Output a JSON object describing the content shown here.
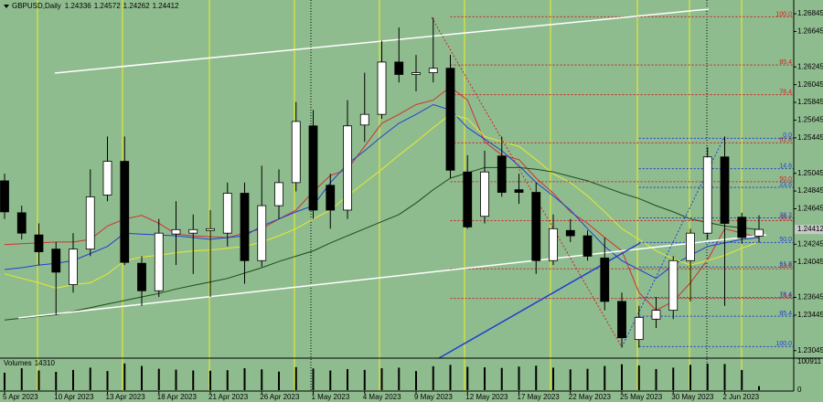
{
  "chart_data": {
    "type": "candlestick",
    "title": "GBPUSD,Daily",
    "categories": [
      "5 Apr 2023",
      null,
      null,
      "10 Apr 2023",
      null,
      null,
      "13 Apr 2023",
      null,
      null,
      "18 Apr 2023",
      null,
      null,
      "21 Apr 2023",
      null,
      null,
      "26 Apr 2023",
      null,
      null,
      "1 May 2023",
      null,
      null,
      "4 May 2023",
      null,
      null,
      "9 May 2023",
      null,
      null,
      "12 May 2023",
      null,
      null,
      "17 May 2023",
      null,
      null,
      "22 May 2023",
      null,
      null,
      "25 May 2023",
      null,
      null,
      "30 May 2023",
      null,
      null,
      "2 Jun 2023",
      null,
      null
    ],
    "candles": {
      "open": [
        1.2496,
        1.246,
        1.2435,
        1.2419,
        1.2379,
        1.2419,
        1.248,
        1.2518,
        1.2403,
        1.2372,
        1.2436,
        1.2437,
        1.244,
        1.2437,
        1.2482,
        1.2406,
        1.2468,
        1.2494,
        1.2558,
        1.2491,
        1.2463,
        1.2559,
        1.2571,
        1.263,
        1.2616,
        1.2618,
        1.2623,
        1.2506,
        1.2456,
        1.2524,
        1.2486,
        1.2483,
        1.2406,
        1.244,
        1.2434,
        1.2409,
        1.236,
        1.2317,
        1.234,
        1.235,
        1.2406,
        1.2437,
        1.2523,
        1.2455,
        1.24336
      ],
      "high": [
        1.2504,
        1.2468,
        1.2448,
        1.2427,
        1.2437,
        1.2509,
        1.2546,
        1.2546,
        1.2411,
        1.2453,
        1.2473,
        1.2458,
        1.2463,
        1.2494,
        1.2494,
        1.2513,
        1.2509,
        1.2585,
        1.2576,
        1.2504,
        1.2587,
        1.2618,
        1.2654,
        1.2669,
        1.2638,
        1.268,
        1.2638,
        1.2525,
        1.253,
        1.2546,
        1.2504,
        1.2494,
        1.2458,
        1.2453,
        1.244,
        1.2432,
        1.237,
        1.2355,
        1.2365,
        1.2411,
        1.2442,
        1.2534,
        1.2546,
        1.246,
        1.24572
      ],
      "low": [
        1.2453,
        1.243,
        1.2401,
        1.2345,
        1.237,
        1.2411,
        1.2473,
        1.2401,
        1.2355,
        1.2365,
        1.2401,
        1.2391,
        1.2365,
        1.2422,
        1.238,
        1.2399,
        1.2453,
        1.2484,
        1.2453,
        1.2442,
        1.2453,
        1.254,
        1.2566,
        1.2607,
        1.2597,
        1.2607,
        1.2499,
        1.2442,
        1.2448,
        1.2478,
        1.247,
        1.2391,
        1.2401,
        1.2427,
        1.2406,
        1.235,
        1.2308,
        1.2308,
        1.233,
        1.234,
        1.236,
        1.243,
        1.2355,
        1.2425,
        1.24262
      ],
      "close": [
        1.2461,
        1.2437,
        1.2416,
        1.2393,
        1.2419,
        1.2478,
        1.2518,
        1.2404,
        1.2372,
        1.2437,
        1.2441,
        1.2441,
        1.2442,
        1.2482,
        1.2406,
        1.2468,
        1.2494,
        1.2563,
        1.2463,
        1.2463,
        1.2558,
        1.2571,
        1.263,
        1.2616,
        1.2618,
        1.2623,
        1.2508,
        1.2444,
        1.2506,
        1.2483,
        1.2483,
        1.2406,
        1.2442,
        1.2434,
        1.2411,
        1.236,
        1.2319,
        1.2342,
        1.235,
        1.2406,
        1.2437,
        1.2523,
        1.2448,
        1.2432,
        1.24412
      ]
    },
    "bull_color": "#ffffff",
    "bear_color": "#000000",
    "overlays": [
      {
        "color": "#d03030",
        "values": [
          1.2424,
          1.2425,
          1.2426,
          1.2427,
          1.2427,
          1.243,
          1.2445,
          1.2453,
          1.2457,
          1.2448,
          1.2436,
          1.2434,
          1.2433,
          1.2432,
          1.2437,
          1.2442,
          1.2453,
          1.2463,
          1.2484,
          1.2502,
          1.2509,
          1.2535,
          1.2561,
          1.2571,
          1.2582,
          1.2587,
          1.2602,
          1.2587,
          1.254,
          1.2525,
          1.252,
          1.2499,
          1.2482,
          1.2461,
          1.2448,
          1.2432,
          1.2417,
          1.237,
          1.235,
          1.236,
          1.2381,
          1.2407,
          1.2442,
          1.2437,
          1.2432
        ]
      },
      {
        "color": "#2040d0",
        "values": [
          1.2396,
          1.2398,
          1.2401,
          1.2403,
          1.2406,
          1.2414,
          1.2422,
          1.2437,
          1.2436,
          1.2435,
          1.2434,
          1.2432,
          1.243,
          1.2432,
          1.2434,
          1.2445,
          1.2453,
          1.2461,
          1.2468,
          1.2494,
          1.2515,
          1.253,
          1.2546,
          1.2561,
          1.2571,
          1.2582,
          1.2576,
          1.2556,
          1.2543,
          1.253,
          1.2513,
          1.2494,
          1.2479,
          1.2463,
          1.2442,
          1.2422,
          1.2406,
          1.2396,
          1.2386,
          1.2401,
          1.2412,
          1.2422,
          1.2426,
          1.243,
          1.2432
        ]
      },
      {
        "color": "#e8e830",
        "values": [
          1.2391,
          1.2386,
          1.2381,
          1.2375,
          1.2379,
          1.2381,
          1.2391,
          1.2406,
          1.241,
          1.2412,
          1.2415,
          1.2417,
          1.2418,
          1.242,
          1.2422,
          1.2427,
          1.2434,
          1.2442,
          1.2453,
          1.2463,
          1.2479,
          1.2494,
          1.2509,
          1.2525,
          1.254,
          1.2556,
          1.2571,
          1.2566,
          1.2546,
          1.254,
          1.2535,
          1.252,
          1.2504,
          1.2494,
          1.2479,
          1.2461,
          1.2442,
          1.243,
          1.2417,
          1.2408,
          1.2401,
          1.2406,
          1.2412,
          1.242,
          1.2427
        ]
      },
      {
        "color": "#1e4a1e",
        "values": [
          1.2339,
          1.2341,
          1.2343,
          1.2345,
          1.2349,
          1.2353,
          1.2357,
          1.2361,
          1.2365,
          1.2369,
          1.2374,
          1.2378,
          1.2382,
          1.2386,
          1.2392,
          1.2398,
          1.2405,
          1.2411,
          1.2417,
          1.2426,
          1.2434,
          1.2442,
          1.245,
          1.2458,
          1.2471,
          1.2486,
          1.2499,
          1.2505,
          1.2511,
          1.2511,
          1.2511,
          1.2509,
          1.2506,
          1.2501,
          1.2496,
          1.2489,
          1.2482,
          1.2476,
          1.2468,
          1.2461,
          1.2453,
          1.2449,
          1.2445,
          1.2443,
          1.2441
        ]
      }
    ],
    "fib": [
      {
        "color": "#cc2222",
        "p0": 1.2309,
        "p100": 1.2681,
        "start": 26,
        "levels": [
          {
            "value": 100,
            "label": "100.0"
          },
          85.4,
          76.4,
          61.8,
          {
            "value": 50,
            "label": "50.0"
          },
          38.2,
          23.6,
          14.6
        ]
      },
      {
        "color": "#1f3fd0",
        "p0": 1.2544,
        "p100": 1.2309,
        "start": 37,
        "levels": [
          {
            "value": 0,
            "label": "0.0"
          },
          14.6,
          23.6,
          38.2,
          {
            "value": 50,
            "label": "50.0"
          },
          61.8,
          76.4,
          85.4,
          {
            "value": 100,
            "label": "100.0"
          }
        ]
      }
    ],
    "ylim": [
      1.2296,
      1.27
    ],
    "yticks": [
      1.26845,
      1.26645,
      1.26245,
      1.26045,
      1.25845,
      1.25645,
      1.25445,
      1.25045,
      1.24845,
      1.24645,
      1.24245,
      1.24045,
      1.23645,
      1.23445,
      1.23045
    ],
    "volume_label": "Volumes",
    "volumes": [
      62000,
      78000,
      70000,
      65000,
      72000,
      80000,
      68000,
      95000,
      86000,
      76000,
      73000,
      70000,
      69000,
      71000,
      78000,
      74000,
      66000,
      82000,
      77000,
      70000,
      75000,
      72000,
      78000,
      80000,
      68000,
      85000,
      90000,
      83000,
      81000,
      79000,
      84000,
      87000,
      80000,
      74000,
      76000,
      86000,
      92000,
      88000,
      75000,
      80000,
      90000,
      94000,
      93000,
      72000,
      14310
    ],
    "volume_ylim": [
      0,
      100911
    ],
    "volume_yticks": [
      100911,
      0
    ]
  }
}
